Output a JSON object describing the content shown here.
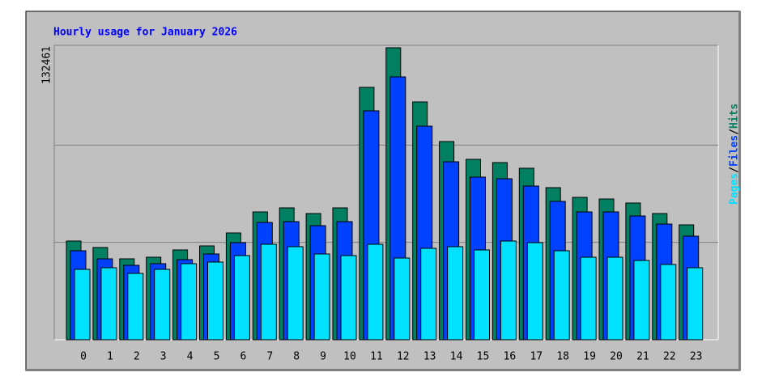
{
  "chart_data": {
    "type": "bar",
    "title": "Hourly usage for January 2026",
    "categories": [
      "0",
      "1",
      "2",
      "3",
      "4",
      "5",
      "6",
      "7",
      "8",
      "9",
      "10",
      "11",
      "12",
      "13",
      "14",
      "15",
      "16",
      "17",
      "18",
      "19",
      "20",
      "21",
      "22",
      "23"
    ],
    "series": [
      {
        "name": "Hits",
        "color": "#008060",
        "values": [
          44766,
          41831,
          36693,
          37427,
          40730,
          42564,
          48435,
          57975,
          59810,
          57241,
          59810,
          114482,
          132461,
          107877,
          89898,
          81825,
          80358,
          77789,
          68983,
          64580,
          63846,
          62011,
          57241,
          52104
        ]
      },
      {
        "name": "Files",
        "color": "#0040ff",
        "values": [
          40363,
          36693,
          33757,
          34491,
          36326,
          38895,
          44031,
          53205,
          53572,
          51737,
          53572,
          103841,
          119252,
          96869,
          80725,
          73753,
          73019,
          69717,
          62745,
          57975,
          57975,
          56140,
          52471,
          46967
        ]
      },
      {
        "name": "Pages",
        "color": "#00e0ff",
        "values": [
          31923,
          32657,
          30088,
          31923,
          34491,
          35225,
          38161,
          43297,
          42197,
          38895,
          38161,
          43297,
          37060,
          41463,
          42197,
          40730,
          44766,
          44031,
          40363,
          37427,
          37427,
          35959,
          34124,
          32657
        ]
      }
    ],
    "ylim": [
      0,
      132461
    ],
    "yticks": [
      132461
    ],
    "grid_divisions": 3,
    "legend_separator": "/",
    "legend_position": "right"
  }
}
